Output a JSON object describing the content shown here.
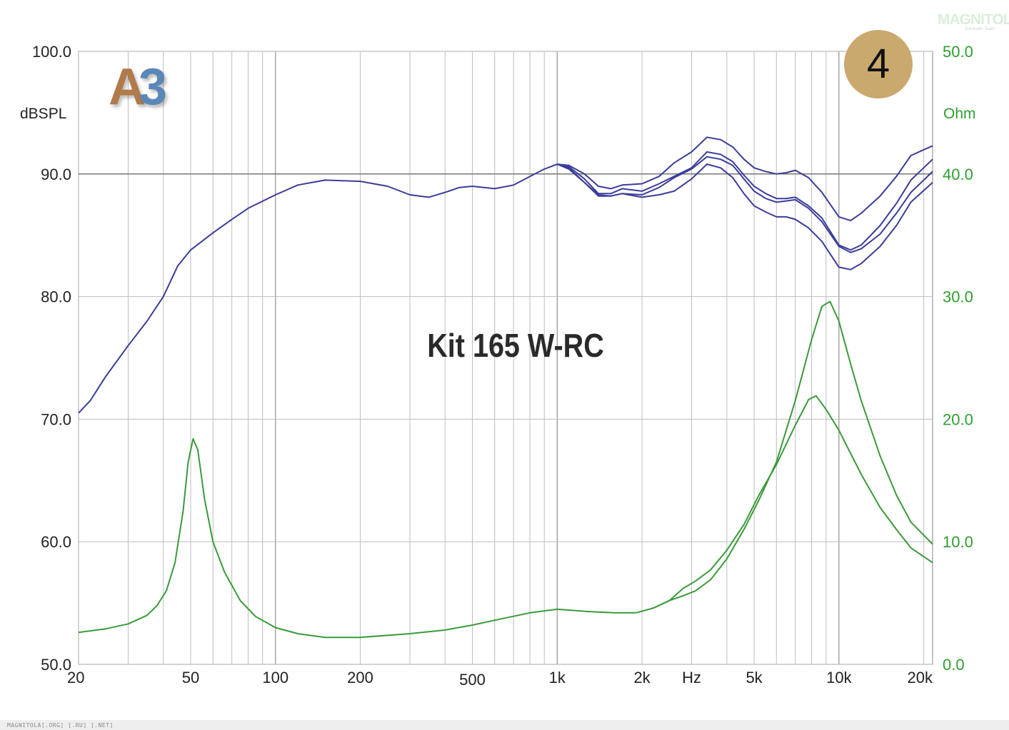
{
  "watermark": {
    "main": "MAGNITOLA",
    "sub": "CarAudio Team"
  },
  "badge": {
    "number": "4"
  },
  "logo": {
    "letter": "A",
    "digit": "3"
  },
  "footer": {
    "text": "MAGNITOLA[.ORG] [.RU] [.NET]"
  },
  "colors": {
    "spl_curve": "#3b3c9a",
    "impedance_curve": "#3a9a3a",
    "grid": "#bdbdbd",
    "left_axis_text": "#222222",
    "right_axis_text": "#2e9e2e",
    "badge": "#c9a96e"
  },
  "chart_data": {
    "type": "line",
    "title": "Kit 165 W-RC",
    "x_scale": "log",
    "xlim": [
      20,
      21500
    ],
    "x_tick_labels": [
      {
        "value": 20,
        "label": "20"
      },
      {
        "value": 50,
        "label": "50"
      },
      {
        "value": 100,
        "label": "100"
      },
      {
        "value": 200,
        "label": "200"
      },
      {
        "value": 500,
        "label": "500"
      },
      {
        "value": 1000,
        "label": "1k"
      },
      {
        "value": 2000,
        "label": "2k"
      },
      {
        "value": 3000,
        "label": "Hz"
      },
      {
        "value": 5000,
        "label": "5k"
      },
      {
        "value": 10000,
        "label": "10k"
      },
      {
        "value": 20000,
        "label": "20k"
      }
    ],
    "y_left": {
      "label": "dBSPL",
      "range": [
        50,
        100
      ],
      "ticks": [
        "100.0",
        "90.0",
        "80.0",
        "70.0",
        "60.0",
        "50.0"
      ]
    },
    "y_right": {
      "label": "Ohm",
      "range": [
        0,
        50
      ],
      "ticks": [
        "50.0",
        "40.0",
        "30.0",
        "20.0",
        "10.0",
        "0.0"
      ]
    },
    "grid": true,
    "spl_series": [
      {
        "axis": "left",
        "values": [
          [
            20,
            70.5
          ],
          [
            22,
            71.5
          ],
          [
            25,
            73.5
          ],
          [
            30,
            76
          ],
          [
            35,
            78
          ],
          [
            40,
            80
          ],
          [
            45,
            82.5
          ],
          [
            50,
            83.8
          ],
          [
            60,
            85.2
          ],
          [
            70,
            86.3
          ],
          [
            80,
            87.2
          ],
          [
            100,
            88.3
          ],
          [
            120,
            89.1
          ],
          [
            150,
            89.5
          ],
          [
            200,
            89.4
          ],
          [
            250,
            89
          ],
          [
            300,
            88.3
          ],
          [
            350,
            88.1
          ],
          [
            400,
            88.5
          ],
          [
            450,
            88.9
          ],
          [
            500,
            89
          ],
          [
            600,
            88.8
          ],
          [
            700,
            89.1
          ],
          [
            800,
            89.8
          ],
          [
            900,
            90.4
          ],
          [
            1000,
            90.8
          ],
          [
            1100,
            90.7
          ],
          [
            1250,
            90
          ],
          [
            1400,
            89
          ],
          [
            1550,
            88.8
          ],
          [
            1700,
            89.1
          ],
          [
            2000,
            89.2
          ],
          [
            2300,
            89.8
          ],
          [
            2600,
            90.9
          ],
          [
            3000,
            91.8
          ],
          [
            3400,
            93
          ],
          [
            3800,
            92.8
          ],
          [
            4200,
            92.2
          ],
          [
            4600,
            91.2
          ],
          [
            5000,
            90.5
          ],
          [
            5500,
            90.2
          ],
          [
            6000,
            90
          ],
          [
            6500,
            90.1
          ],
          [
            7000,
            90.3
          ],
          [
            7800,
            89.7
          ],
          [
            8700,
            88.5
          ],
          [
            10000,
            86.5
          ],
          [
            11000,
            86.2
          ],
          [
            12000,
            86.8
          ],
          [
            14000,
            88.2
          ],
          [
            16000,
            89.8
          ],
          [
            18000,
            91.5
          ],
          [
            21500,
            92.3
          ]
        ]
      },
      {
        "axis": "left",
        "values": [
          [
            1000,
            90.8
          ],
          [
            1100,
            90.6
          ],
          [
            1250,
            89.6
          ],
          [
            1400,
            88.4
          ],
          [
            1550,
            88.4
          ],
          [
            1700,
            88.8
          ],
          [
            2000,
            88.6
          ],
          [
            2300,
            89.2
          ],
          [
            2600,
            89.8
          ],
          [
            3000,
            90.5
          ],
          [
            3400,
            91.8
          ],
          [
            3800,
            91.6
          ],
          [
            4200,
            91
          ],
          [
            4600,
            89.9
          ],
          [
            5000,
            89
          ],
          [
            5500,
            88.4
          ],
          [
            6000,
            88
          ],
          [
            6500,
            88
          ],
          [
            7000,
            88.1
          ],
          [
            7800,
            87.4
          ],
          [
            8700,
            86.4
          ],
          [
            10000,
            84.2
          ],
          [
            11000,
            83.8
          ],
          [
            12000,
            84.2
          ],
          [
            14000,
            85.8
          ],
          [
            16000,
            87.6
          ],
          [
            18000,
            89.5
          ],
          [
            21500,
            91.2
          ]
        ]
      },
      {
        "axis": "left",
        "values": [
          [
            1000,
            90.8
          ],
          [
            1100,
            90.5
          ],
          [
            1250,
            89.3
          ],
          [
            1400,
            88.3
          ],
          [
            1550,
            88.2
          ],
          [
            1700,
            88.4
          ],
          [
            2000,
            88.3
          ],
          [
            2300,
            88.9
          ],
          [
            2600,
            89.7
          ],
          [
            3000,
            90.4
          ],
          [
            3400,
            91.4
          ],
          [
            3800,
            91.2
          ],
          [
            4200,
            90.7
          ],
          [
            4600,
            89.6
          ],
          [
            5000,
            88.6
          ],
          [
            5500,
            88
          ],
          [
            6000,
            87.7
          ],
          [
            6500,
            87.8
          ],
          [
            7000,
            87.9
          ],
          [
            7800,
            87.2
          ],
          [
            8700,
            86.1
          ],
          [
            10000,
            84.1
          ],
          [
            11000,
            83.6
          ],
          [
            12000,
            83.9
          ],
          [
            14000,
            85.1
          ],
          [
            16000,
            86.8
          ],
          [
            18000,
            88.5
          ],
          [
            21500,
            90.2
          ]
        ]
      },
      {
        "axis": "left",
        "values": [
          [
            1000,
            90.8
          ],
          [
            1100,
            90.4
          ],
          [
            1250,
            89.3
          ],
          [
            1400,
            88.2
          ],
          [
            1550,
            88.2
          ],
          [
            1700,
            88.4
          ],
          [
            2000,
            88.1
          ],
          [
            2300,
            88.3
          ],
          [
            2600,
            88.6
          ],
          [
            3000,
            89.6
          ],
          [
            3400,
            90.8
          ],
          [
            3800,
            90.5
          ],
          [
            4200,
            89.7
          ],
          [
            4600,
            88.4
          ],
          [
            5000,
            87.4
          ],
          [
            5500,
            86.9
          ],
          [
            6000,
            86.5
          ],
          [
            6500,
            86.5
          ],
          [
            7000,
            86.3
          ],
          [
            7800,
            85.6
          ],
          [
            8700,
            84.5
          ],
          [
            10000,
            82.4
          ],
          [
            11000,
            82.2
          ],
          [
            12000,
            82.7
          ],
          [
            14000,
            84.1
          ],
          [
            16000,
            85.8
          ],
          [
            18000,
            87.7
          ],
          [
            21500,
            89.3
          ]
        ]
      }
    ],
    "impedance_series": [
      {
        "axis": "right",
        "values": [
          [
            20,
            2.6
          ],
          [
            25,
            2.9
          ],
          [
            30,
            3.3
          ],
          [
            35,
            4
          ],
          [
            38,
            4.8
          ],
          [
            41,
            6
          ],
          [
            44,
            8.3
          ],
          [
            47,
            12.5
          ],
          [
            49,
            16.5
          ],
          [
            51,
            18.4
          ],
          [
            53,
            17.5
          ],
          [
            56,
            13.5
          ],
          [
            60,
            10
          ],
          [
            66,
            7.5
          ],
          [
            75,
            5.2
          ],
          [
            85,
            3.9
          ],
          [
            100,
            3
          ],
          [
            120,
            2.5
          ],
          [
            150,
            2.2
          ],
          [
            200,
            2.2
          ],
          [
            300,
            2.5
          ],
          [
            400,
            2.8
          ],
          [
            500,
            3.2
          ],
          [
            600,
            3.6
          ],
          [
            800,
            4.2
          ],
          [
            1000,
            4.5
          ],
          [
            1300,
            4.3
          ],
          [
            1600,
            4.2
          ],
          [
            1900,
            4.2
          ],
          [
            2200,
            4.6
          ],
          [
            2500,
            5.2
          ],
          [
            2800,
            5.6
          ],
          [
            3100,
            6
          ],
          [
            3500,
            6.9
          ],
          [
            4000,
            8.6
          ],
          [
            4600,
            11
          ],
          [
            5200,
            13.4
          ],
          [
            6000,
            16.5
          ],
          [
            7000,
            21.5
          ],
          [
            8000,
            26.5
          ],
          [
            8700,
            29.2
          ],
          [
            9300,
            29.6
          ],
          [
            10000,
            28
          ],
          [
            11000,
            24.5
          ],
          [
            12000,
            21.5
          ],
          [
            14000,
            17
          ],
          [
            16000,
            13.8
          ],
          [
            18000,
            11.6
          ],
          [
            21500,
            9.8
          ]
        ]
      },
      {
        "axis": "right",
        "values": [
          [
            2200,
            4.6
          ],
          [
            2500,
            5.2
          ],
          [
            2800,
            6.2
          ],
          [
            3100,
            6.8
          ],
          [
            3500,
            7.7
          ],
          [
            4000,
            9.3
          ],
          [
            4600,
            11.4
          ],
          [
            5200,
            13.8
          ],
          [
            6000,
            16.3
          ],
          [
            7000,
            19.5
          ],
          [
            7800,
            21.6
          ],
          [
            8300,
            21.9
          ],
          [
            9000,
            20.8
          ],
          [
            10000,
            19.1
          ],
          [
            11000,
            17.2
          ],
          [
            12000,
            15.5
          ],
          [
            14000,
            12.8
          ],
          [
            16000,
            11
          ],
          [
            18000,
            9.5
          ],
          [
            21500,
            8.3
          ]
        ]
      }
    ]
  }
}
